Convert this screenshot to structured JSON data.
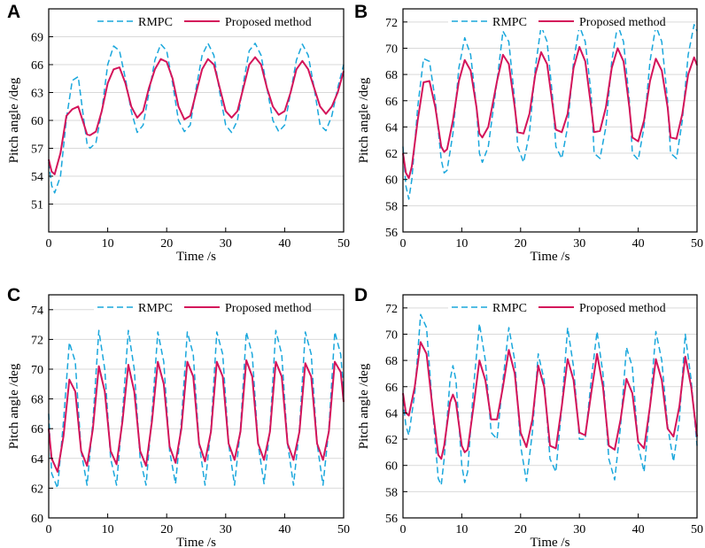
{
  "colors": {
    "rmpc": "#1aa7dc",
    "proposed": "#d4145a",
    "grid": "#d9d9d9",
    "axis": "#000000"
  },
  "chart_data": [
    {
      "panel": "A",
      "type": "line",
      "xlabel": "Time /s",
      "ylabel": "Pitch angle /deg",
      "xlim": [
        0,
        50
      ],
      "ylim": [
        48,
        72
      ],
      "xticks": [
        0,
        10,
        20,
        30,
        40,
        50
      ],
      "yticks": [
        51,
        54,
        57,
        60,
        63,
        66,
        69
      ],
      "grid": true,
      "legend": "top",
      "series": [
        {
          "name": "RMPC",
          "style": "dashed",
          "x": [
            0,
            0.5,
            1,
            2,
            3,
            4,
            5,
            6,
            6.5,
            7,
            8,
            9,
            10,
            11,
            12,
            13,
            14,
            15,
            16,
            17,
            18,
            19,
            20,
            21,
            22,
            23,
            24,
            25,
            26,
            27,
            28,
            29,
            30,
            31,
            32,
            33,
            34,
            35,
            36,
            37,
            38,
            39,
            40,
            41,
            42,
            43,
            44,
            45,
            46,
            47,
            48,
            49,
            50
          ],
          "y": [
            55.5,
            53,
            52.2,
            54,
            60.2,
            64.3,
            64.7,
            59.8,
            57.5,
            57.0,
            57.6,
            61.0,
            66.0,
            68.0,
            67.5,
            64.5,
            61.0,
            58.7,
            59.5,
            63.0,
            66.5,
            68.2,
            67.5,
            64.0,
            60.0,
            58.8,
            59.5,
            63.5,
            67.0,
            68.3,
            67.0,
            63.0,
            59.5,
            58.7,
            60.0,
            64.0,
            67.5,
            68.3,
            67.0,
            63.5,
            60.0,
            58.8,
            59.5,
            63.0,
            66.5,
            68.2,
            67.0,
            63.5,
            59.5,
            58.9,
            60.5,
            63.5,
            66.0
          ]
        },
        {
          "name": "Proposed method",
          "style": "solid",
          "x": [
            0,
            0.5,
            1,
            2,
            3,
            4,
            5,
            6,
            6.5,
            7,
            8,
            9,
            10,
            11,
            12,
            13,
            14,
            15,
            16,
            17,
            18,
            19,
            20,
            21,
            22,
            23,
            24,
            25,
            26,
            27,
            28,
            29,
            30,
            31,
            32,
            33,
            34,
            35,
            36,
            37,
            38,
            39,
            40,
            41,
            42,
            43,
            44,
            45,
            46,
            47,
            48,
            49,
            50
          ],
          "y": [
            55.8,
            54.5,
            54.2,
            56.5,
            60.5,
            61.2,
            61.5,
            59.5,
            58.5,
            58.4,
            58.8,
            61.0,
            64.0,
            65.5,
            65.7,
            64.0,
            61.5,
            60.3,
            61.0,
            63.5,
            65.5,
            66.6,
            66.3,
            64.5,
            61.5,
            60.1,
            60.5,
            63.0,
            65.5,
            66.6,
            66.0,
            63.5,
            61.0,
            60.3,
            61.0,
            63.5,
            66.0,
            66.8,
            66.0,
            63.5,
            61.5,
            60.6,
            61.0,
            63.0,
            65.5,
            66.4,
            65.5,
            63.5,
            61.5,
            60.7,
            61.5,
            63.0,
            65.3
          ]
        }
      ]
    },
    {
      "panel": "B",
      "type": "line",
      "xlabel": "Time /s",
      "ylabel": "Pitch angle /deg",
      "xlim": [
        0,
        50
      ],
      "ylim": [
        56,
        73
      ],
      "xticks": [
        0,
        10,
        20,
        30,
        40,
        50
      ],
      "yticks": [
        56,
        58,
        60,
        62,
        64,
        66,
        68,
        70,
        72
      ],
      "grid": true,
      "legend": "top",
      "series": [
        {
          "name": "RMPC",
          "style": "dashed",
          "x": [
            0,
            0.5,
            1,
            1.5,
            2.5,
            3.5,
            4.5,
            5.5,
            6.5,
            7,
            7.5,
            8.5,
            9.5,
            10.5,
            11.5,
            12.5,
            13,
            13.5,
            14.5,
            16,
            17,
            18,
            19,
            19.5,
            20.5,
            21.5,
            22.5,
            23.5,
            24.5,
            25.5,
            26,
            27,
            28,
            29,
            30,
            31,
            32,
            32.5,
            33.5,
            34.5,
            35.5,
            36.5,
            37.5,
            38.5,
            39,
            40,
            41,
            42,
            43,
            44,
            45,
            45.5,
            46.5,
            47.5,
            48.5,
            49.5,
            50
          ],
          "y": [
            62.5,
            59.5,
            58.5,
            60,
            65.5,
            69.2,
            69.0,
            66.0,
            61.5,
            60.5,
            60.7,
            63.5,
            68.5,
            70.8,
            69.5,
            65.5,
            62.0,
            61.3,
            62.5,
            67.5,
            71.3,
            70.5,
            66.0,
            62.5,
            61.3,
            63.5,
            68.5,
            71.7,
            70.5,
            66.0,
            62.5,
            61.6,
            64.0,
            69.0,
            71.7,
            70.5,
            66.5,
            62.0,
            61.6,
            64.0,
            69.0,
            71.8,
            70.5,
            66.0,
            62.0,
            61.5,
            64.0,
            69.0,
            71.7,
            70.5,
            66.0,
            62.0,
            61.6,
            64.5,
            69.5,
            71.8,
            71.3
          ]
        },
        {
          "name": "Proposed method",
          "style": "solid",
          "x": [
            0,
            0.5,
            1,
            1.5,
            2.5,
            3.5,
            4.5,
            5.5,
            6.5,
            7,
            7.5,
            8.5,
            9.5,
            10.5,
            11.5,
            12.5,
            13,
            13.5,
            14.5,
            16,
            17,
            18,
            19,
            19.5,
            20.5,
            21.5,
            22.5,
            23.5,
            24.5,
            25.5,
            26,
            27,
            28,
            29,
            30,
            31,
            32,
            32.5,
            33.5,
            34.5,
            35.5,
            36.5,
            37.5,
            38.5,
            39,
            40,
            41,
            42,
            43,
            44,
            45,
            45.5,
            46.5,
            47.5,
            48.5,
            49.5,
            50
          ],
          "y": [
            62.0,
            60.5,
            60.1,
            61.0,
            64.5,
            67.4,
            67.5,
            65.5,
            62.5,
            62.1,
            62.3,
            64.5,
            67.5,
            69.1,
            68.3,
            65.5,
            63.5,
            63.2,
            64.0,
            67.5,
            69.5,
            68.8,
            65.5,
            63.6,
            63.5,
            65.0,
            68.0,
            69.7,
            68.8,
            65.5,
            63.8,
            63.6,
            65.0,
            68.5,
            70.1,
            69.0,
            65.5,
            63.6,
            63.7,
            65.5,
            68.5,
            70.0,
            69.0,
            65.5,
            63.2,
            62.9,
            64.5,
            67.5,
            69.2,
            68.3,
            65.5,
            63.2,
            63.1,
            65.0,
            68.0,
            69.3,
            68.7
          ]
        }
      ]
    },
    {
      "panel": "C",
      "type": "line",
      "xlabel": "Time /s",
      "ylabel": "Pitch angle /deg",
      "xlim": [
        0,
        50
      ],
      "ylim": [
        60,
        75
      ],
      "xticks": [
        0,
        10,
        20,
        30,
        40,
        50
      ],
      "yticks": [
        60,
        62,
        64,
        66,
        68,
        70,
        72,
        74
      ],
      "grid": true,
      "legend": "top",
      "series": [
        {
          "name": "RMPC",
          "style": "dashed",
          "x": [
            0,
            0.5,
            1.5,
            2.5,
            3.5,
            4.5,
            5.5,
            6.5,
            7.5,
            8.5,
            9.5,
            10.5,
            11.5,
            12.5,
            13.5,
            14.5,
            15.5,
            16.5,
            17.5,
            18.5,
            19.5,
            20.5,
            21.5,
            22.5,
            23.5,
            24.5,
            25.5,
            26.5,
            27.5,
            28.5,
            29.5,
            30.5,
            31.5,
            32.5,
            33.5,
            34.5,
            35.5,
            36.5,
            37.5,
            38.5,
            39.5,
            40.5,
            41.5,
            42.5,
            43.5,
            44.5,
            45.5,
            46.5,
            47.5,
            48.5,
            49.5,
            50
          ],
          "y": [
            67.0,
            63.0,
            62.0,
            66.5,
            71.8,
            70.5,
            64.5,
            62.2,
            66.5,
            72.6,
            70.0,
            64.0,
            62.2,
            67.0,
            72.6,
            70.0,
            64.0,
            62.2,
            67.0,
            72.5,
            70.5,
            64.5,
            62.3,
            66.5,
            72.5,
            71.0,
            65.0,
            62.2,
            66.0,
            72.5,
            71.0,
            65.0,
            62.2,
            66.0,
            72.5,
            71.0,
            65.0,
            62.3,
            66.0,
            72.6,
            71.0,
            65.0,
            62.2,
            66.0,
            72.5,
            71.0,
            65.0,
            62.2,
            66.0,
            72.5,
            71.0,
            68.5
          ]
        },
        {
          "name": "Proposed method",
          "style": "solid",
          "x": [
            0,
            0.5,
            1.5,
            2.5,
            3.5,
            4.5,
            5.5,
            6.5,
            7.5,
            8.5,
            9.5,
            10.5,
            11.5,
            12.5,
            13.5,
            14.5,
            15.5,
            16.5,
            17.5,
            18.5,
            19.5,
            20.5,
            21.5,
            22.5,
            23.5,
            24.5,
            25.5,
            26.5,
            27.5,
            28.5,
            29.5,
            30.5,
            31.5,
            32.5,
            33.5,
            34.5,
            35.5,
            36.5,
            37.5,
            38.5,
            39.5,
            40.5,
            41.5,
            42.5,
            43.5,
            44.5,
            45.5,
            46.5,
            47.5,
            48.5,
            49.5,
            50
          ],
          "y": [
            66.0,
            64.0,
            63.1,
            65.5,
            69.3,
            68.5,
            64.5,
            63.5,
            66.0,
            70.2,
            68.5,
            64.5,
            63.6,
            66.5,
            70.3,
            68.5,
            64.5,
            63.5,
            66.5,
            70.5,
            69.0,
            64.8,
            63.7,
            66.0,
            70.5,
            69.5,
            65.0,
            63.8,
            65.8,
            70.5,
            69.5,
            65.0,
            63.9,
            65.8,
            70.6,
            69.5,
            65.0,
            63.9,
            65.8,
            70.5,
            69.5,
            65.0,
            63.9,
            65.8,
            70.4,
            69.5,
            65.0,
            63.9,
            65.8,
            70.5,
            69.8,
            67.8
          ]
        }
      ]
    },
    {
      "panel": "D",
      "type": "line",
      "xlabel": "Time /s",
      "ylabel": "Pitch angle /deg",
      "xlim": [
        0,
        50
      ],
      "ylim": [
        56,
        73
      ],
      "xticks": [
        0,
        10,
        20,
        30,
        40,
        50
      ],
      "yticks": [
        56,
        58,
        60,
        62,
        64,
        66,
        68,
        70,
        72
      ],
      "grid": true,
      "legend": "top",
      "series": [
        {
          "name": "RMPC",
          "style": "dashed",
          "x": [
            0,
            0.5,
            1,
            2,
            3,
            4,
            5,
            6,
            6.5,
            7,
            8,
            8.5,
            9,
            10,
            10.5,
            11,
            12,
            13,
            14,
            15,
            16,
            17,
            18,
            19,
            20,
            21,
            22,
            23,
            24,
            25,
            26,
            27,
            28,
            29,
            30,
            31,
            32,
            33,
            34,
            35,
            36,
            37,
            38,
            39,
            40,
            41,
            42,
            43,
            44,
            45,
            46,
            47,
            48,
            49,
            50
          ],
          "y": [
            65.0,
            63.0,
            62.3,
            65.5,
            71.5,
            70.5,
            64.5,
            59.0,
            58.5,
            60.5,
            66.5,
            67.6,
            66.5,
            60.0,
            58.7,
            59.5,
            66.0,
            70.8,
            68.0,
            62.5,
            62.0,
            66.5,
            70.5,
            68.0,
            61.5,
            58.8,
            62.5,
            68.5,
            66.5,
            60.5,
            59.5,
            64.5,
            70.5,
            67.5,
            62.0,
            62.0,
            66.5,
            70.2,
            67.0,
            60.5,
            58.9,
            63.0,
            69.0,
            67.5,
            61.5,
            59.5,
            64.5,
            70.2,
            68.0,
            63.0,
            60.3,
            63.5,
            70.0,
            66.5,
            61.5
          ]
        },
        {
          "name": "Proposed method",
          "style": "solid",
          "x": [
            0,
            0.5,
            1,
            2,
            3,
            4,
            5,
            6,
            6.5,
            7,
            8,
            8.5,
            9,
            10,
            10.5,
            11,
            12,
            13,
            14,
            15,
            16,
            17,
            18,
            19,
            20,
            21,
            22,
            23,
            24,
            25,
            26,
            27,
            28,
            29,
            30,
            31,
            32,
            33,
            34,
            35,
            36,
            37,
            38,
            39,
            40,
            41,
            42,
            43,
            44,
            45,
            46,
            47,
            48,
            49,
            50
          ],
          "y": [
            65.5,
            64.0,
            63.8,
            66.0,
            69.4,
            68.5,
            64.5,
            60.8,
            60.5,
            61.5,
            64.8,
            65.4,
            64.8,
            61.5,
            61.0,
            61.2,
            64.5,
            68.0,
            66.5,
            63.5,
            63.5,
            66.0,
            68.8,
            67.0,
            62.5,
            61.4,
            63.5,
            67.6,
            66.0,
            61.5,
            61.3,
            64.5,
            68.1,
            66.5,
            62.5,
            62.3,
            65.5,
            68.5,
            66.0,
            61.5,
            61.2,
            63.5,
            66.6,
            65.5,
            61.8,
            61.3,
            64.5,
            68.1,
            66.5,
            62.8,
            62.2,
            64.5,
            68.3,
            66.0,
            62.2
          ]
        }
      ]
    }
  ]
}
